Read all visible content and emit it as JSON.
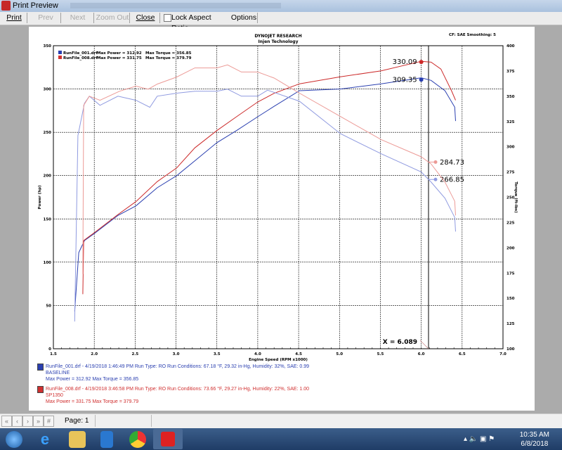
{
  "window": {
    "title": "Print Preview"
  },
  "toolbar": {
    "print": "Print",
    "prev": "Prev",
    "next": "Next",
    "zoom_out": "Zoom Out",
    "close": "Close",
    "lock_aspect": "Lock Aspect Ratio",
    "lock_checked": false,
    "options": "Options"
  },
  "report": {
    "company": "DYNOJET RESEARCH",
    "subtitle": "Injen Technology",
    "cf": "CF: SAE  Smoothing: 5",
    "legend": [
      {
        "file": "RunFile_001.drf",
        "max_power": "Max Power = 312.92",
        "max_torque": "Max Torque = 356.85",
        "color": "#2a3fb0"
      },
      {
        "file": "RunFile_008.drf",
        "max_power": "Max Power = 331.75",
        "max_torque": "Max Torque = 379.79",
        "color": "#d03030"
      }
    ],
    "runs": [
      {
        "line1": "RunFile_001.drf - 4/19/2018 1:46:49 PM  Run Type: RO  Run Conditions: 67.18 °F, 29.32 in-Hg,  Humidity:  32%, SAE: 0.99",
        "line2": "BASELINE",
        "line3": "Max Power = 312.92  Max Torque = 356.85",
        "color": "#2a3fb0"
      },
      {
        "line1": "RunFile_008.drf - 4/19/2018 3:46:58 PM  Run Type: RO  Run Conditions: 73.66 °F, 29.27 in-Hg,  Humidity:  22%, SAE: 1.00",
        "line2": "SP1350",
        "line3": "Max Power = 331.75  Max Torque = 379.79",
        "color": "#d03030"
      }
    ]
  },
  "chart_data": {
    "type": "line",
    "xlabel": "Engine Speed (RPM x1000)",
    "ylabel": "Power (hp)",
    "y2label": "Torque (ft-lbs)",
    "xlim": [
      1.5,
      7.0
    ],
    "ylim": [
      0,
      350
    ],
    "y2lim": [
      100,
      400
    ],
    "xticks": [
      "1.5",
      "2.0",
      "2.5",
      "3.0",
      "3.5",
      "4.0",
      "4.5",
      "5.0",
      "5.5",
      "6.0",
      "6.5",
      "7.0"
    ],
    "yticks": [
      "0",
      "50",
      "100",
      "150",
      "200",
      "250",
      "300",
      "350"
    ],
    "y2ticks": [
      "100",
      "125",
      "150",
      "175",
      "200",
      "225",
      "250",
      "275",
      "300",
      "325",
      "350",
      "375",
      "400"
    ],
    "grid": true,
    "cursor": {
      "x": 6.089,
      "label": "X = 6.089"
    },
    "series": [
      {
        "name": "RunFile_001.drf",
        "measure": "power",
        "axis": "left",
        "color": "#2a3fb0",
        "x": [
          1.76,
          1.81,
          1.88,
          2.0,
          2.29,
          2.51,
          2.77,
          3.01,
          3.23,
          3.5,
          3.74,
          4.0,
          4.2,
          4.51,
          5.01,
          5.51,
          6.0,
          6.12,
          6.29,
          6.41,
          6.42
        ],
        "y": [
          43,
          111,
          125,
          133,
          154,
          165,
          186,
          200,
          217,
          238,
          252,
          268,
          280,
          298,
          300,
          306,
          313,
          310,
          298,
          279,
          263
        ],
        "marker_value": "309.35"
      },
      {
        "name": "RunFile_008.drf",
        "measure": "power",
        "axis": "left",
        "color": "#cc2a2a",
        "x": [
          1.86,
          1.87,
          2.0,
          2.29,
          2.51,
          2.77,
          3.01,
          3.23,
          3.5,
          3.74,
          4.0,
          4.2,
          4.51,
          5.01,
          5.51,
          6.0,
          6.12,
          6.24,
          6.37,
          6.42
        ],
        "y": [
          63,
          125,
          134,
          155,
          170,
          193,
          209,
          232,
          252,
          268,
          285,
          295,
          306,
          314,
          321,
          332,
          331,
          323,
          298,
          287
        ],
        "marker_value": "330.09"
      },
      {
        "name": "RunFile_001.drf",
        "measure": "torque",
        "axis": "right",
        "color": "#8f9ae0",
        "x": [
          1.76,
          1.8,
          1.88,
          1.94,
          2.07,
          2.29,
          2.51,
          2.68,
          2.77,
          3.01,
          3.23,
          3.5,
          3.63,
          3.8,
          4.0,
          4.12,
          4.51,
          5.01,
          5.51,
          6.0,
          6.12,
          6.29,
          6.41,
          6.42
        ],
        "y": [
          127,
          311,
          343,
          350,
          341,
          350,
          346,
          339,
          350,
          353,
          355,
          355,
          357,
          350,
          350,
          356,
          345,
          313,
          293,
          275,
          265,
          249,
          230,
          216
        ],
        "marker_value": "266.85"
      },
      {
        "name": "RunFile_008.drf",
        "measure": "torque",
        "axis": "right",
        "color": "#ec9a96",
        "x": [
          1.86,
          1.87,
          1.94,
          2.07,
          2.31,
          2.51,
          2.66,
          2.77,
          3.01,
          3.23,
          3.5,
          3.63,
          3.8,
          4.0,
          4.2,
          4.51,
          5.01,
          5.51,
          6.0,
          6.12,
          6.29,
          6.41,
          6.42
        ],
        "y": [
          174,
          341,
          350,
          346,
          355,
          360,
          357,
          362,
          369,
          378,
          378,
          381,
          374,
          374,
          368,
          353,
          330,
          307,
          290,
          283,
          265,
          246,
          232
        ],
        "marker_value": "284.73"
      }
    ]
  },
  "statusbar": {
    "page": "Page: 1"
  },
  "taskbar": {
    "time": "10:35 AM",
    "date": "6/8/2018"
  }
}
